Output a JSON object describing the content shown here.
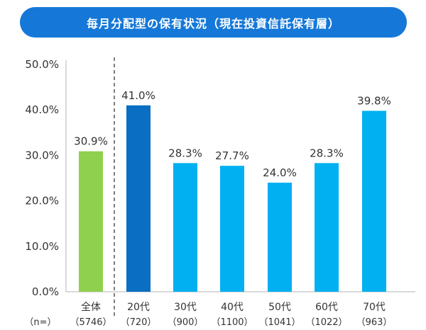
{
  "title": "毎月分配型の保有状況（現在投資信託保有層）",
  "colors": {
    "banner": "#1578d8",
    "overall": "#8fd14f",
    "age20": "#0a6fc2",
    "ages": "#00b0f0",
    "axis": "#b3b3b3",
    "divider": "#555555"
  },
  "n_label": "（n=）",
  "chart_data": {
    "type": "bar",
    "title": "毎月分配型の保有状況（現在投資信託保有層）",
    "xlabel": "",
    "ylabel": "",
    "ylim": [
      0,
      50
    ],
    "yticks": [
      "0.0%",
      "10.0%",
      "20.0%",
      "30.0%",
      "40.0%",
      "50.0%"
    ],
    "categories": [
      "全体",
      "20代",
      "30代",
      "40代",
      "50代",
      "60代",
      "70代"
    ],
    "sample_sizes": [
      "（5746）",
      "（720）",
      "（900）",
      "（1100）",
      "（1041）",
      "（1022）",
      "（963）"
    ],
    "values": [
      30.9,
      41.0,
      28.3,
      27.7,
      24.0,
      28.3,
      39.8
    ],
    "value_labels": [
      "30.9%",
      "41.0%",
      "28.3%",
      "27.7%",
      "24.0%",
      "28.3%",
      "39.8%"
    ],
    "grid": false,
    "legend": "none"
  }
}
